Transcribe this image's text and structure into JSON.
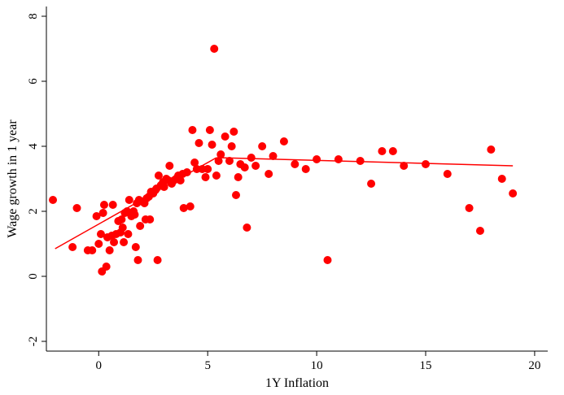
{
  "chart_data": {
    "type": "scatter",
    "xlabel": "1Y Inflation",
    "ylabel": "Wage growth in 1 year",
    "xlim": [
      -2.4,
      20.6
    ],
    "ylim": [
      -2.3,
      8.3
    ],
    "xticks": [
      0,
      5,
      10,
      15,
      20
    ],
    "yticks": [
      -2,
      0,
      2,
      4,
      6,
      8
    ],
    "grid": false,
    "legend": "none",
    "point_color": "#ff0000",
    "line_color": "#ff0000",
    "points": [
      [
        -2.1,
        2.35
      ],
      [
        -1.2,
        0.9
      ],
      [
        -1.0,
        2.1
      ],
      [
        -0.5,
        0.8
      ],
      [
        -0.3,
        0.8
      ],
      [
        -0.1,
        1.85
      ],
      [
        0.0,
        1.0
      ],
      [
        0.1,
        1.3
      ],
      [
        0.15,
        0.15
      ],
      [
        0.2,
        1.95
      ],
      [
        0.25,
        2.2
      ],
      [
        0.35,
        0.3
      ],
      [
        0.4,
        1.2
      ],
      [
        0.5,
        0.8
      ],
      [
        0.6,
        1.25
      ],
      [
        0.65,
        2.2
      ],
      [
        0.7,
        1.05
      ],
      [
        0.8,
        1.3
      ],
      [
        0.9,
        1.7
      ],
      [
        1.0,
        1.35
      ],
      [
        1.05,
        1.75
      ],
      [
        1.1,
        1.5
      ],
      [
        1.15,
        1.05
      ],
      [
        1.2,
        1.95
      ],
      [
        1.3,
        2.0
      ],
      [
        1.35,
        1.3
      ],
      [
        1.4,
        2.35
      ],
      [
        1.5,
        1.85
      ],
      [
        1.6,
        2.0
      ],
      [
        1.65,
        1.9
      ],
      [
        1.7,
        0.9
      ],
      [
        1.75,
        2.25
      ],
      [
        1.8,
        0.5
      ],
      [
        1.85,
        2.35
      ],
      [
        1.9,
        1.55
      ],
      [
        2.0,
        2.3
      ],
      [
        2.1,
        2.25
      ],
      [
        2.15,
        1.75
      ],
      [
        2.2,
        2.4
      ],
      [
        2.3,
        2.45
      ],
      [
        2.35,
        1.75
      ],
      [
        2.4,
        2.6
      ],
      [
        2.5,
        2.55
      ],
      [
        2.6,
        2.65
      ],
      [
        2.65,
        2.7
      ],
      [
        2.7,
        0.5
      ],
      [
        2.75,
        3.1
      ],
      [
        2.85,
        2.8
      ],
      [
        2.95,
        2.9
      ],
      [
        3.0,
        2.75
      ],
      [
        3.1,
        3.0
      ],
      [
        3.2,
        2.95
      ],
      [
        3.25,
        3.4
      ],
      [
        3.35,
        2.85
      ],
      [
        3.45,
        2.95
      ],
      [
        3.55,
        3.0
      ],
      [
        3.65,
        3.1
      ],
      [
        3.75,
        2.95
      ],
      [
        3.85,
        3.15
      ],
      [
        3.9,
        2.1
      ],
      [
        4.05,
        3.2
      ],
      [
        4.2,
        2.15
      ],
      [
        4.3,
        4.5
      ],
      [
        4.4,
        3.5
      ],
      [
        4.5,
        3.3
      ],
      [
        4.6,
        4.1
      ],
      [
        4.75,
        3.3
      ],
      [
        4.9,
        3.05
      ],
      [
        5.0,
        3.3
      ],
      [
        5.1,
        4.5
      ],
      [
        5.2,
        4.05
      ],
      [
        5.3,
        7.0
      ],
      [
        5.4,
        3.1
      ],
      [
        5.5,
        3.55
      ],
      [
        5.6,
        3.75
      ],
      [
        5.8,
        4.3
      ],
      [
        6.0,
        3.55
      ],
      [
        6.1,
        4.0
      ],
      [
        6.2,
        4.45
      ],
      [
        6.3,
        2.5
      ],
      [
        6.4,
        3.05
      ],
      [
        6.5,
        3.45
      ],
      [
        6.7,
        3.35
      ],
      [
        6.8,
        1.5
      ],
      [
        7.0,
        3.65
      ],
      [
        7.2,
        3.4
      ],
      [
        7.5,
        4.0
      ],
      [
        7.8,
        3.15
      ],
      [
        8.0,
        3.7
      ],
      [
        8.5,
        4.15
      ],
      [
        9.0,
        3.45
      ],
      [
        9.5,
        3.3
      ],
      [
        10.0,
        3.6
      ],
      [
        10.5,
        0.5
      ],
      [
        11.0,
        3.6
      ],
      [
        12.0,
        3.55
      ],
      [
        12.5,
        2.85
      ],
      [
        13.0,
        3.85
      ],
      [
        13.5,
        3.85
      ],
      [
        14.0,
        3.4
      ],
      [
        15.0,
        3.45
      ],
      [
        16.0,
        3.15
      ],
      [
        17.0,
        2.1
      ],
      [
        17.5,
        1.4
      ],
      [
        18.0,
        3.9
      ],
      [
        18.5,
        3.0
      ],
      [
        19.0,
        2.55
      ]
    ],
    "fit_segments": [
      [
        [
          -2.0,
          0.85
        ],
        [
          5.4,
          3.65
        ]
      ],
      [
        [
          5.5,
          3.65
        ],
        [
          19.0,
          3.4
        ]
      ]
    ]
  }
}
